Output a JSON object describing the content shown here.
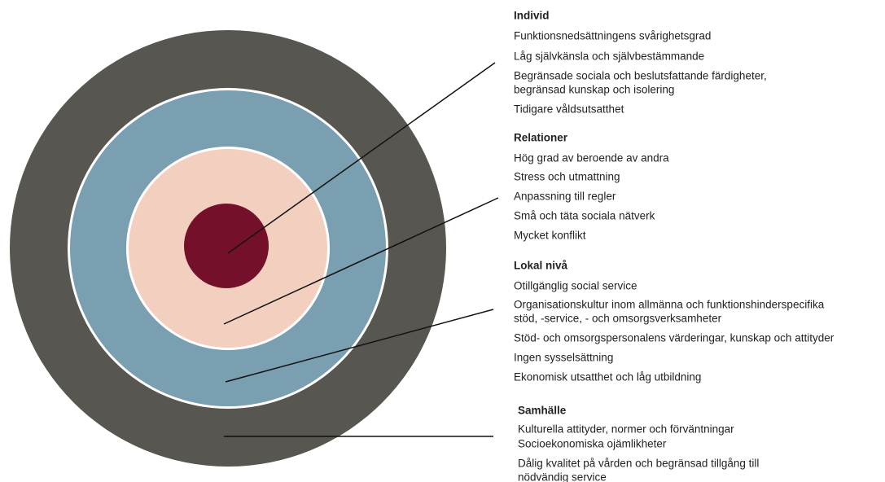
{
  "groups": [
    {
      "title": "Individ",
      "items": [
        [
          "Funktionsnedsättningens svårighetsgrad"
        ],
        [
          "Låg självkänsla och självbestämmande"
        ],
        [
          "Begränsade sociala och beslutsfattande färdigheter,",
          "begränsad kunskap och isolering"
        ],
        [
          "Tidigare våldsutsatthet"
        ]
      ]
    },
    {
      "title": "Relationer",
      "items": [
        [
          "Hög grad av beroende av andra"
        ],
        [
          "Stress och utmattning"
        ],
        [
          "Anpassning till regler"
        ],
        [
          "Små och täta sociala nätverk"
        ],
        [
          "Mycket konflikt"
        ]
      ]
    },
    {
      "title": "Lokal nivå",
      "items": [
        [
          "Otillgänglig social service"
        ],
        [
          "Organisationskultur inom allmänna och funktionshinderspecifika",
          "stöd, -service, - och omsorgsverksamheter"
        ],
        [
          "Stöd- och omsorgspersonalens värderingar, kunskap och attityder"
        ],
        [
          "Ingen sysselsättning"
        ],
        [
          "Ekonomisk utsatthet och låg utbildning"
        ]
      ]
    },
    {
      "title": "Samhälle",
      "items": [
        [
          "Kulturella attityder, normer och förväntningar"
        ],
        [
          "Socioekonomiska ojämlikheter"
        ],
        [
          "Dålig kvalitet på vården och begränsad tillgång till",
          "nödvändig service"
        ]
      ]
    }
  ]
}
